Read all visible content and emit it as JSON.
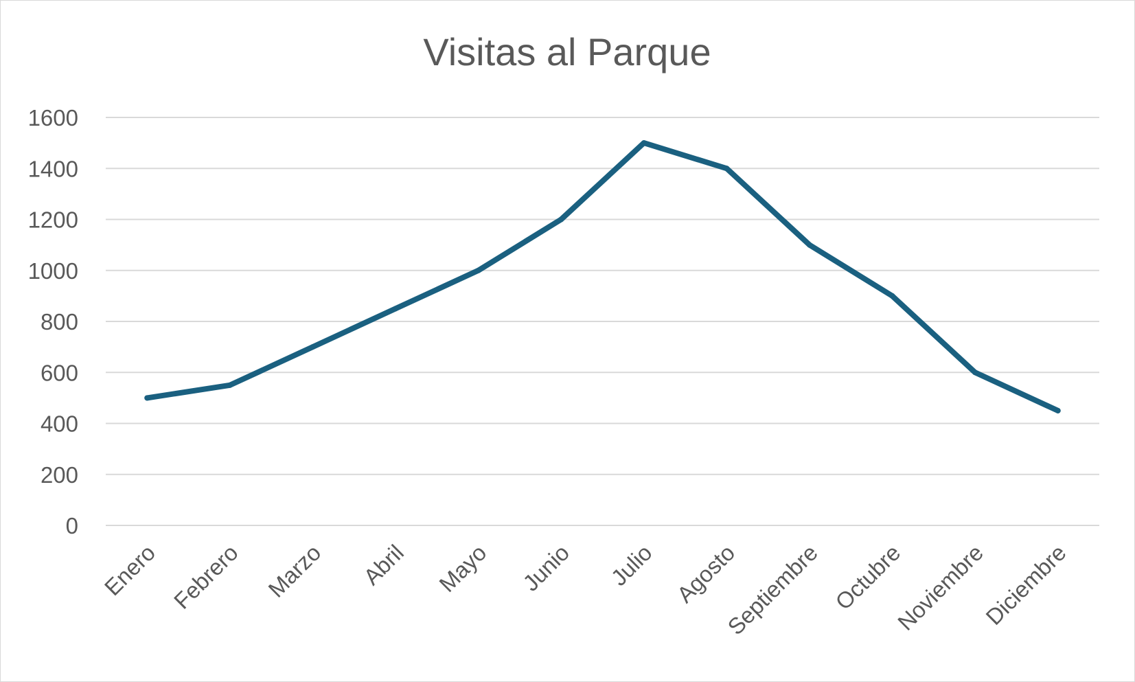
{
  "chart_data": {
    "type": "line",
    "title": "Visitas al Parque",
    "xlabel": "",
    "ylabel": "",
    "categories": [
      "Enero",
      "Febrero",
      "Marzo",
      "Abril",
      "Mayo",
      "Junio",
      "Julio",
      "Agosto",
      "Septiembre",
      "Octubre",
      "Noviembre",
      "Diciembre"
    ],
    "series": [
      {
        "values": [
          500,
          550,
          700,
          850,
          1000,
          1200,
          1500,
          1400,
          1100,
          900,
          600,
          450
        ],
        "color": "#1a6080"
      }
    ],
    "ylim": [
      0,
      1600
    ],
    "yticks": [
      "0",
      "200",
      "400",
      "600",
      "800",
      "1000",
      "1200",
      "1400",
      "1600"
    ],
    "grid": true,
    "legend": "none"
  }
}
